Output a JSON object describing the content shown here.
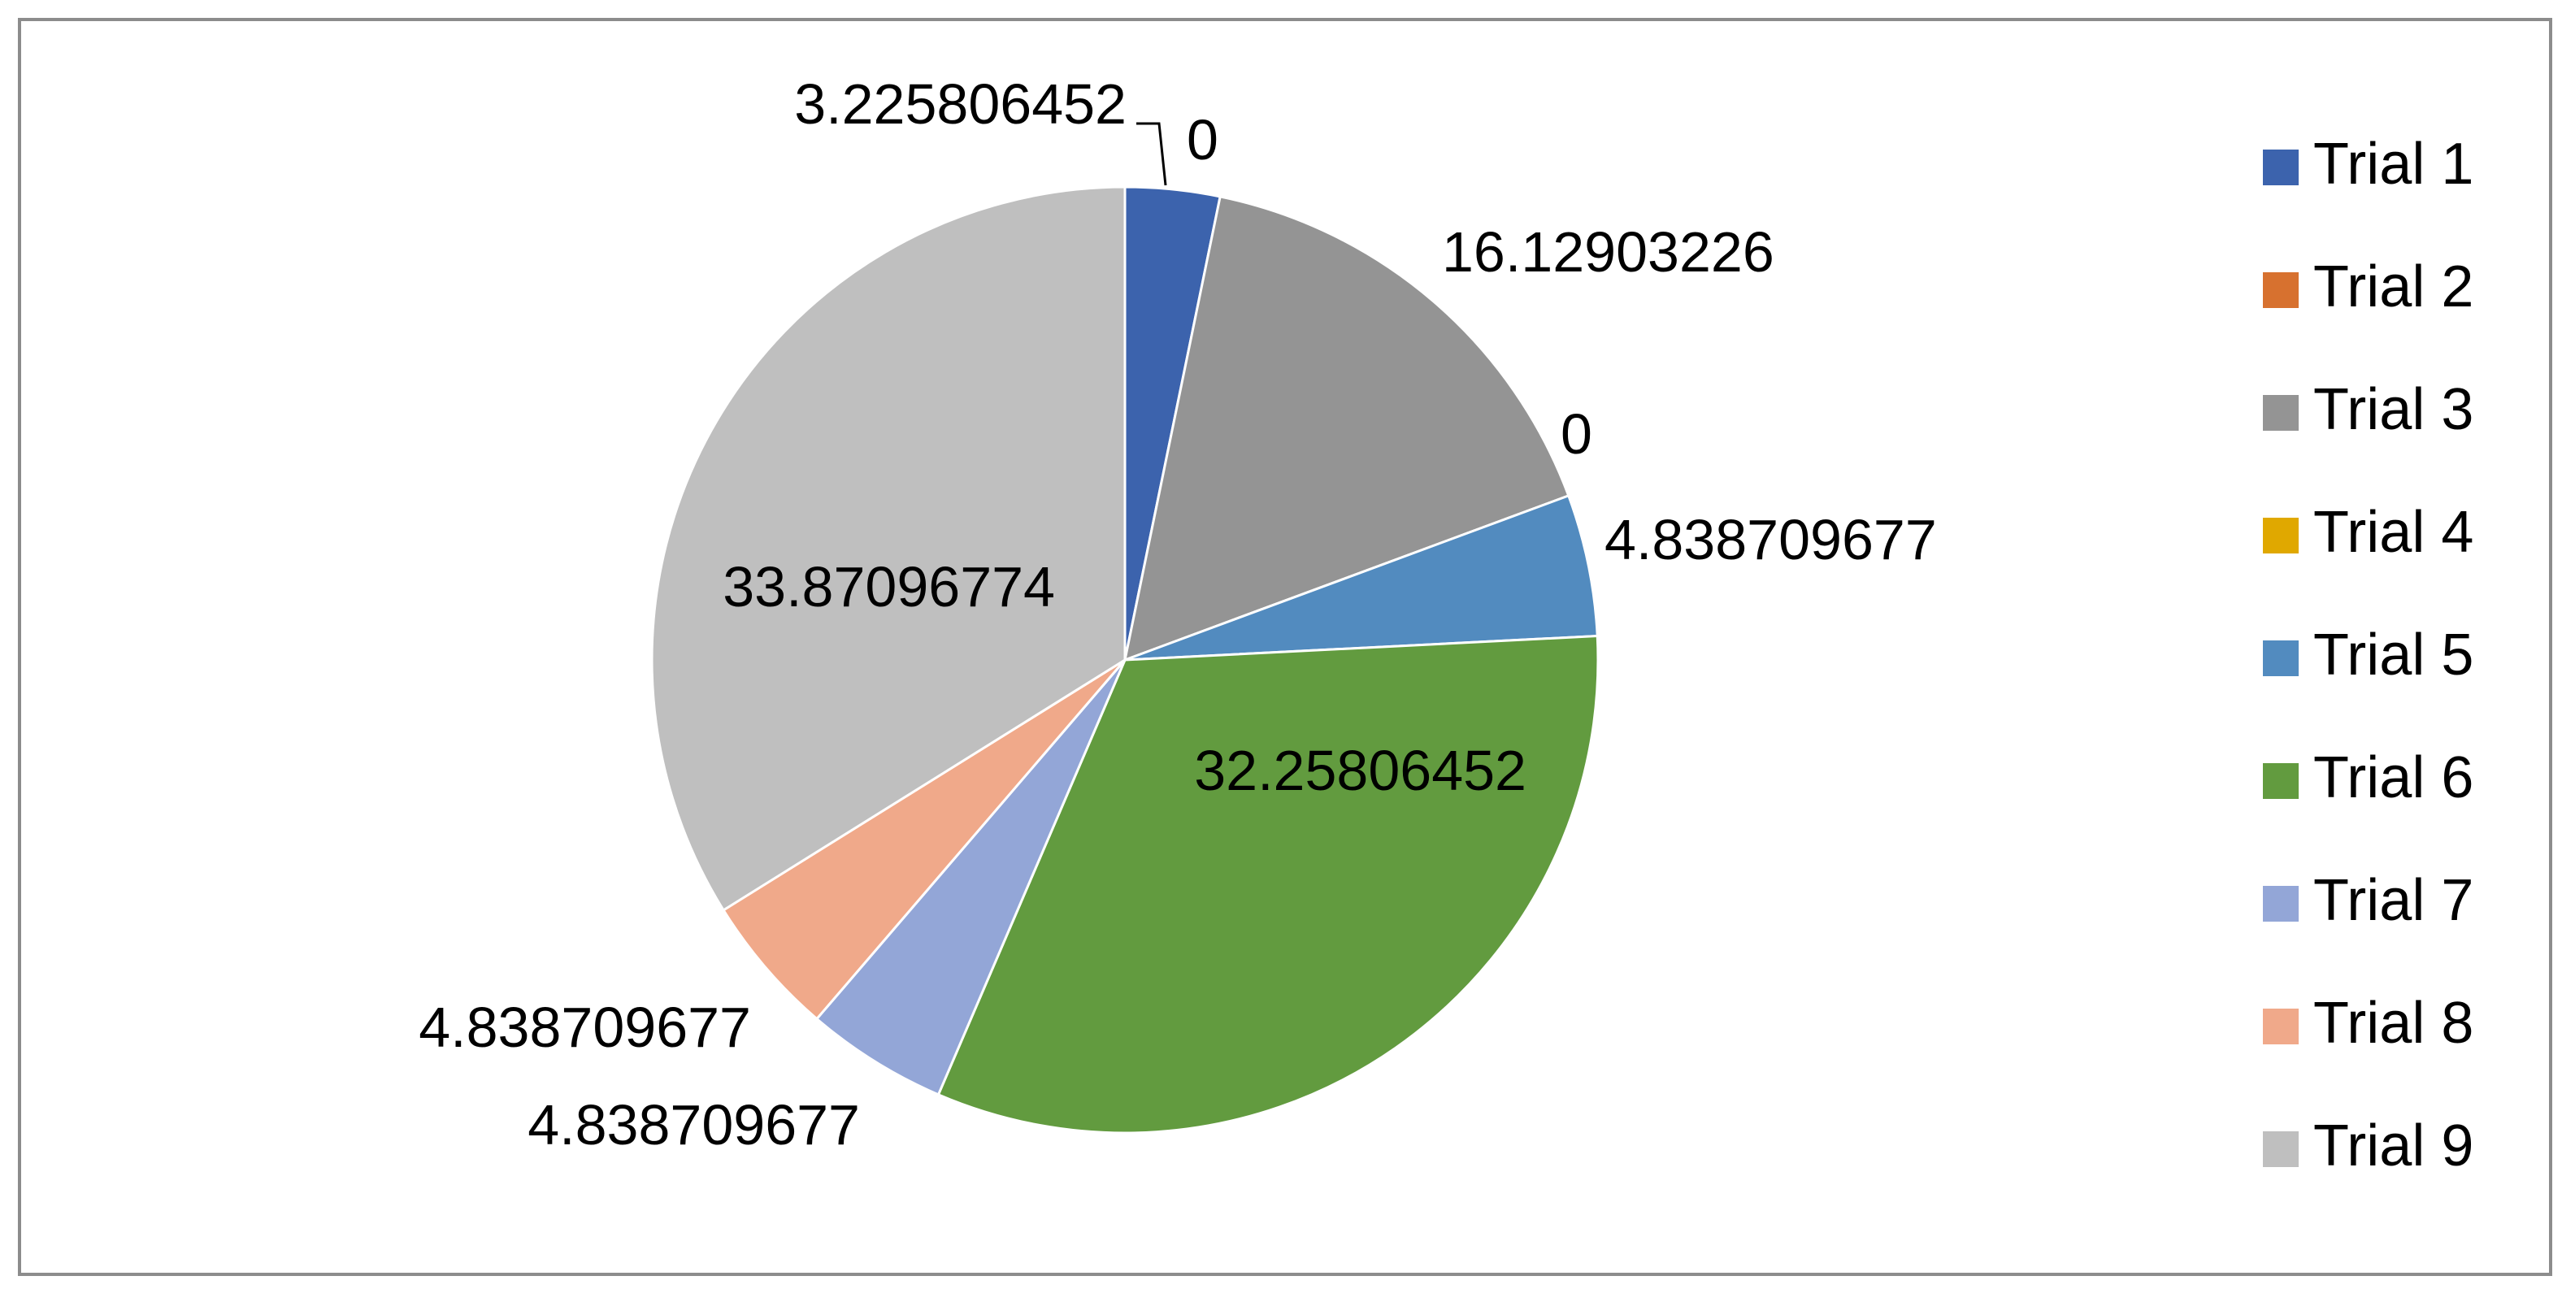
{
  "chart_data": {
    "type": "pie",
    "title": "",
    "legend_position": "right",
    "slices": [
      {
        "name": "Trial 1",
        "value": 3.225806452,
        "label": "3.225806452",
        "color": "#3c63ad"
      },
      {
        "name": "Trial 2",
        "value": 0,
        "label": "0",
        "color": "#d7712f"
      },
      {
        "name": "Trial 3",
        "value": 16.12903226,
        "label": "16.12903226",
        "color": "#949494"
      },
      {
        "name": "Trial 4",
        "value": 0,
        "label": "0",
        "color": "#e0a800"
      },
      {
        "name": "Trial 5",
        "value": 4.838709677,
        "label": "4.838709677",
        "color": "#528bbf"
      },
      {
        "name": "Trial 6",
        "value": 32.25806452,
        "label": "32.25806452",
        "color": "#629b3f"
      },
      {
        "name": "Trial 7",
        "value": 4.838709677,
        "label": "4.838709677",
        "color": "#93a6d7"
      },
      {
        "name": "Trial 8",
        "value": 4.838709677,
        "label": "4.838709677",
        "color": "#f0a98a"
      },
      {
        "name": "Trial 9",
        "value": 33.87096774,
        "label": "33.87096774",
        "color": "#bfbfbf"
      }
    ]
  }
}
